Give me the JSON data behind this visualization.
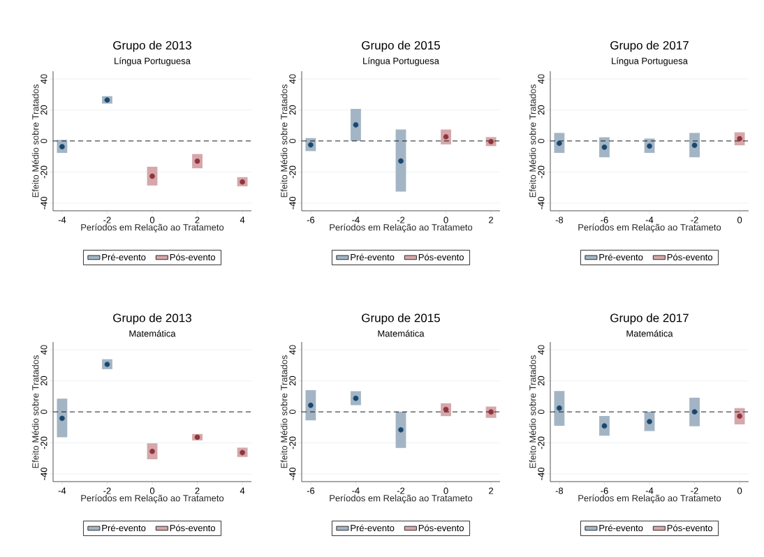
{
  "chart_data": [
    {
      "type": "scatter",
      "title": "Grupo de 2013",
      "subtitle": "Língua Portuguesa",
      "xlabel": "Períodos em Relação ao Tratameto",
      "ylabel": "Efeito Médio sobre Tratados",
      "xlim": [
        -4.4,
        4.4
      ],
      "ylim": [
        -45,
        45
      ],
      "xticks": [
        -4,
        -2,
        0,
        2,
        4
      ],
      "yticks": [
        -40,
        -20,
        0,
        20,
        40
      ],
      "grid": "y",
      "legend": "bottom",
      "marker": "circle",
      "ref_lines": [
        {
          "axis": "y",
          "value": 0,
          "color": "#000000",
          "line_style": "dashed"
        }
      ],
      "series": [
        {
          "name": "Pré-evento",
          "type": "bar",
          "color": "#a3b5c5",
          "x": [
            -4,
            -2
          ],
          "base": [
            -7.7,
            24.1
          ],
          "values": [
            8.4,
            4.8
          ]
        },
        {
          "name": "Pós-evento",
          "type": "bar",
          "color": "#d5a7aa",
          "x": [
            0,
            2,
            4
          ],
          "base": [
            -28.7,
            -17.6,
            -29.2
          ],
          "values": [
            12.1,
            9.2,
            5.9
          ]
        },
        {
          "color": "#1a476f",
          "x": [
            -4,
            -2
          ],
          "values": [
            -3.7,
            26.4
          ]
        },
        {
          "color": "#90353b",
          "x": [
            0,
            2,
            4
          ],
          "values": [
            -22.7,
            -13,
            -26.4
          ]
        }
      ]
    },
    {
      "type": "scatter",
      "title": "Grupo de 2015",
      "subtitle": "Língua Portuguesa",
      "xlabel": "Períodos em Relação ao Tratameto",
      "ylabel": "Efeito Médio sobre Tratados",
      "xlim": [
        -6.4,
        2.4
      ],
      "ylim": [
        -45,
        45
      ],
      "xticks": [
        -6,
        -4,
        -2,
        0,
        2
      ],
      "yticks": [
        -40,
        -20,
        0,
        20,
        40
      ],
      "grid": "y",
      "legend": "bottom",
      "marker": "circle",
      "ref_lines": [
        {
          "axis": "y",
          "value": 0,
          "color": "#000000",
          "line_style": "dashed"
        }
      ],
      "series": [
        {
          "name": "Pré-evento",
          "type": "bar",
          "color": "#a3b5c5",
          "x": [
            -6,
            -4,
            -2
          ],
          "base": [
            -6.5,
            0,
            -32.6
          ],
          "values": [
            8.4,
            20.7,
            40
          ]
        },
        {
          "name": "Pós-evento",
          "type": "bar",
          "color": "#d5a7aa",
          "x": [
            0,
            2
          ],
          "base": [
            -2.2,
            -3.3
          ],
          "values": [
            9.6,
            5.8
          ]
        },
        {
          "color": "#1a476f",
          "x": [
            -6,
            -4,
            -2
          ],
          "values": [
            -2.5,
            10.4,
            -12.9
          ]
        },
        {
          "color": "#90353b",
          "x": [
            0,
            2
          ],
          "values": [
            2.7,
            -0.4
          ]
        }
      ]
    },
    {
      "type": "scatter",
      "title": "Grupo de 2017",
      "subtitle": "Língua Portuguesa",
      "xlabel": "Períodos em Relação ao Tratameto",
      "ylabel": "Efeito Médio sobre Tratados",
      "xlim": [
        -8.4,
        0.4
      ],
      "ylim": [
        -45,
        45
      ],
      "xticks": [
        -8,
        -6,
        -4,
        -2,
        0
      ],
      "yticks": [
        -40,
        -20,
        0,
        20,
        40
      ],
      "grid": "y",
      "legend": "bottom",
      "marker": "circle",
      "ref_lines": [
        {
          "axis": "y",
          "value": 0,
          "color": "#000000",
          "line_style": "dashed"
        }
      ],
      "series": [
        {
          "name": "Pré-evento",
          "type": "bar",
          "color": "#a3b5c5",
          "x": [
            -8,
            -6,
            -4,
            -2
          ],
          "base": [
            -7.7,
            -10.5,
            -7.7,
            -10.5
          ],
          "values": [
            12.9,
            12.9,
            9.3,
            15.7
          ]
        },
        {
          "name": "Pós-evento",
          "type": "bar",
          "color": "#d5a7aa",
          "x": [
            0
          ],
          "base": [
            -2.8
          ],
          "values": [
            8.4
          ]
        },
        {
          "color": "#1a476f",
          "x": [
            -8,
            -6,
            -4,
            -2
          ],
          "values": [
            -1.5,
            -4,
            -3.3,
            -2.8
          ]
        },
        {
          "color": "#90353b",
          "x": [
            0
          ],
          "values": [
            1.5
          ]
        }
      ]
    },
    {
      "type": "scatter",
      "title": "Grupo de 2013",
      "subtitle": "Matemática",
      "xlabel": "Períodos em Relação ao Tratameto",
      "ylabel": "Efeito Médio sobre Tratados",
      "xlim": [
        -4.4,
        4.4
      ],
      "ylim": [
        -45,
        45
      ],
      "xticks": [
        -4,
        -2,
        0,
        2,
        4
      ],
      "yticks": [
        -40,
        -20,
        0,
        20,
        40
      ],
      "grid": "y",
      "legend": "bottom",
      "marker": "circle",
      "ref_lines": [
        {
          "axis": "y",
          "value": 0,
          "color": "#000000",
          "line_style": "dashed"
        }
      ],
      "series": [
        {
          "name": "Pré-evento",
          "type": "bar",
          "color": "#a3b5c5",
          "x": [
            -4,
            -2
          ],
          "base": [
            -16.4,
            27.5
          ],
          "values": [
            24.9,
            6.4
          ]
        },
        {
          "name": "Pós-evento",
          "type": "bar",
          "color": "#d5a7aa",
          "x": [
            0,
            2,
            4
          ],
          "base": [
            -30.6,
            -18.4,
            -29.1
          ],
          "values": [
            10.3,
            4.1,
            6
          ]
        },
        {
          "color": "#1a476f",
          "x": [
            -4,
            -2
          ],
          "values": [
            -4.2,
            30.6
          ]
        },
        {
          "color": "#90353b",
          "x": [
            0,
            2,
            4
          ],
          "values": [
            -25.5,
            -16.4,
            -26.3
          ]
        }
      ]
    },
    {
      "type": "scatter",
      "title": "Grupo de 2015",
      "subtitle": "Matemática",
      "xlabel": "Períodos em Relação ao Tratameto",
      "ylabel": "Efeito Médio sobre Tratados",
      "xlim": [
        -6.4,
        2.4
      ],
      "ylim": [
        -45,
        45
      ],
      "xticks": [
        -6,
        -4,
        -2,
        0,
        2
      ],
      "yticks": [
        -40,
        -20,
        0,
        20,
        40
      ],
      "grid": "y",
      "legend": "bottom",
      "marker": "circle",
      "ref_lines": [
        {
          "axis": "y",
          "value": 0,
          "color": "#000000",
          "line_style": "dashed"
        }
      ],
      "series": [
        {
          "name": "Pré-evento",
          "type": "bar",
          "color": "#a3b5c5",
          "x": [
            -6,
            -4,
            -2
          ],
          "base": [
            -5.5,
            4.3,
            -23.3
          ],
          "values": [
            19.5,
            9,
            23.3
          ]
        },
        {
          "name": "Pós-evento",
          "type": "bar",
          "color": "#d5a7aa",
          "x": [
            0,
            2
          ],
          "base": [
            -2.8,
            -3.9
          ],
          "values": [
            8.3,
            7.3
          ]
        },
        {
          "color": "#1a476f",
          "x": [
            -6,
            -4,
            -2
          ],
          "values": [
            4.2,
            8.7,
            -11.6
          ]
        },
        {
          "color": "#90353b",
          "x": [
            0,
            2
          ],
          "values": [
            1.5,
            -0.1
          ]
        }
      ]
    },
    {
      "type": "scatter",
      "title": "Grupo de 2017",
      "subtitle": "Matemática",
      "xlabel": "Períodos em Relação ao Tratameto",
      "ylabel": "Efeito Médio sobre Tratados",
      "xlim": [
        -8.4,
        0.4
      ],
      "ylim": [
        -45,
        45
      ],
      "xticks": [
        -8,
        -6,
        -4,
        -2,
        0
      ],
      "yticks": [
        -40,
        -20,
        0,
        20,
        40
      ],
      "grid": "y",
      "legend": "bottom",
      "marker": "circle",
      "ref_lines": [
        {
          "axis": "y",
          "value": 0,
          "color": "#000000",
          "line_style": "dashed"
        }
      ],
      "series": [
        {
          "name": "Pré-evento",
          "type": "bar",
          "color": "#a3b5c5",
          "x": [
            -8,
            -6,
            -4,
            -2
          ],
          "base": [
            -9,
            -15.4,
            -12.4,
            -9.3
          ],
          "values": [
            22.4,
            12.7,
            12.4,
            18.4
          ]
        },
        {
          "name": "Pós-evento",
          "type": "bar",
          "color": "#d5a7aa",
          "x": [
            0
          ],
          "base": [
            -8.1
          ],
          "values": [
            10.5
          ]
        },
        {
          "color": "#1a476f",
          "x": [
            -8,
            -6,
            -4,
            -2
          ],
          "values": [
            2.4,
            -9.1,
            -6.3,
            0
          ]
        },
        {
          "color": "#90353b",
          "x": [
            0
          ],
          "values": [
            -2.8
          ]
        }
      ]
    }
  ]
}
